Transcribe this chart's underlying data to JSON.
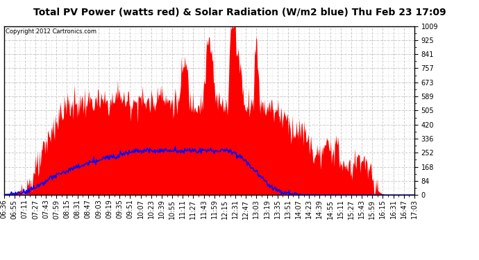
{
  "title": "Total PV Power (watts red) & Solar Radiation (W/m2 blue) Thu Feb 23 17:09",
  "copyright_text": "Copyright 2012 Cartronics.com",
  "background_color": "#ffffff",
  "plot_bg_color": "#ffffff",
  "grid_color": "#cccccc",
  "y_min": 0.0,
  "y_max": 1009.3,
  "y_ticks": [
    0.0,
    84.1,
    168.2,
    252.3,
    336.4,
    420.5,
    504.7,
    588.8,
    672.9,
    757.0,
    841.1,
    925.2,
    1009.3
  ],
  "x_labels": [
    "06:36",
    "06:55",
    "07:11",
    "07:27",
    "07:43",
    "07:59",
    "08:15",
    "08:31",
    "08:47",
    "09:03",
    "09:19",
    "09:35",
    "09:51",
    "10:07",
    "10:23",
    "10:39",
    "10:55",
    "11:11",
    "11:27",
    "11:43",
    "11:59",
    "12:15",
    "12:31",
    "12:47",
    "13:03",
    "13:19",
    "13:35",
    "13:51",
    "14:07",
    "14:23",
    "14:39",
    "14:55",
    "15:11",
    "15:27",
    "15:43",
    "15:59",
    "16:15",
    "16:31",
    "16:47",
    "17:03"
  ],
  "pv_color": "#ff0000",
  "solar_color": "#0000ff",
  "title_fontsize": 10,
  "tick_fontsize": 7
}
